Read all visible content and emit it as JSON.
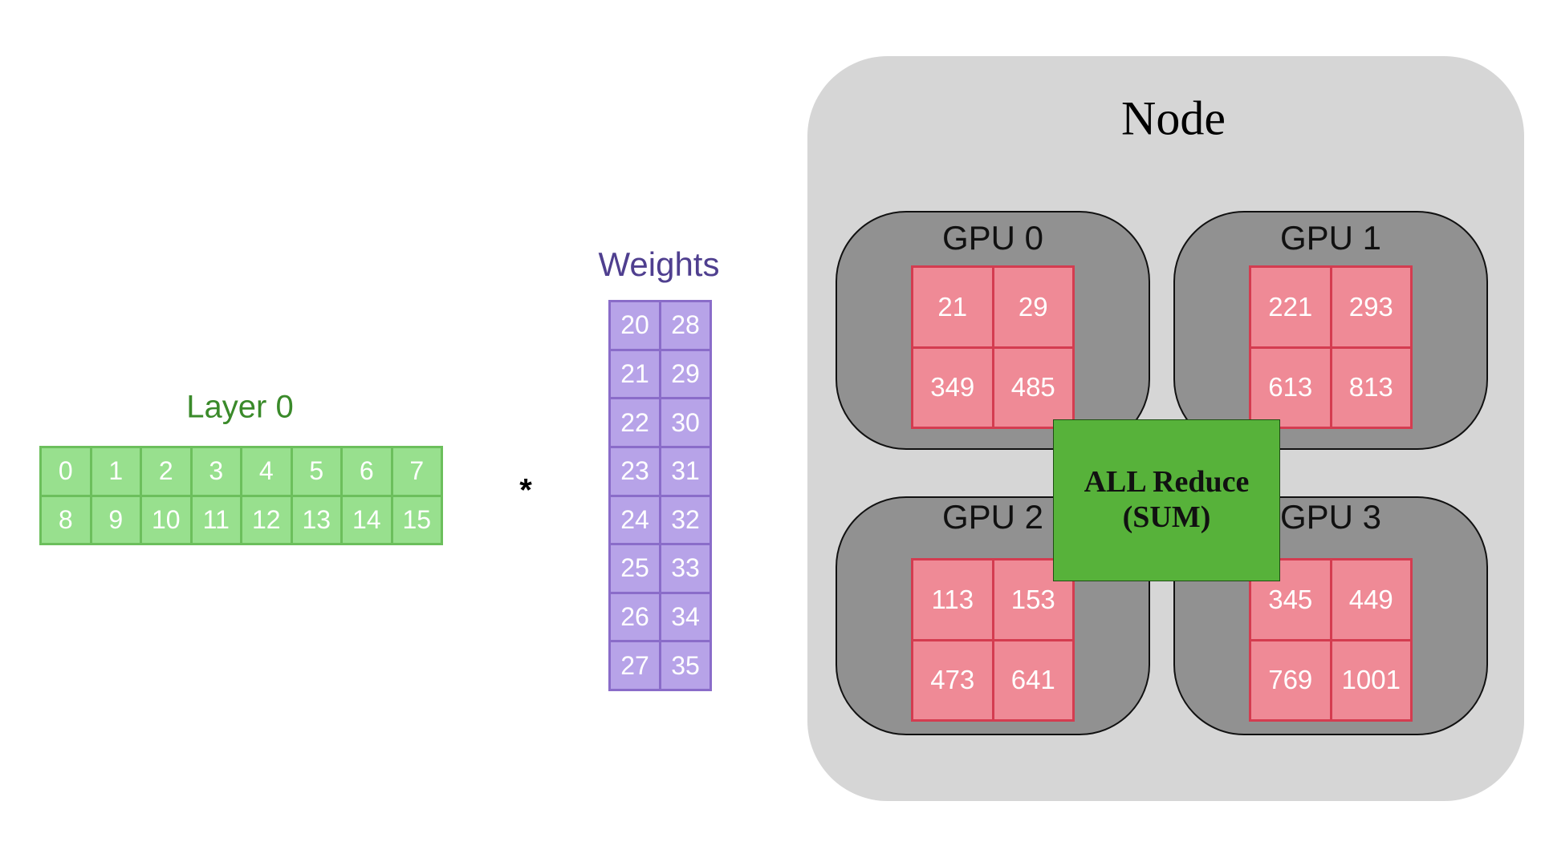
{
  "layer": {
    "title": "Layer 0",
    "rows": [
      [
        "0",
        "1",
        "2",
        "3",
        "4",
        "5",
        "6",
        "7"
      ],
      [
        "8",
        "9",
        "10",
        "11",
        "12",
        "13",
        "14",
        "15"
      ]
    ],
    "color": "#98e08e",
    "title_color": "#3a8a2a"
  },
  "operator": "*",
  "weights": {
    "title": "Weights",
    "rows": [
      [
        "20",
        "28"
      ],
      [
        "21",
        "29"
      ],
      [
        "22",
        "30"
      ],
      [
        "23",
        "31"
      ],
      [
        "24",
        "32"
      ],
      [
        "25",
        "33"
      ],
      [
        "26",
        "34"
      ],
      [
        "27",
        "35"
      ]
    ],
    "color": "#b7a3e8",
    "title_color": "#4f3f8f"
  },
  "node": {
    "title": "Node",
    "gpus": [
      {
        "label": "GPU 0",
        "rows": [
          [
            "21",
            "29"
          ],
          [
            "349",
            "485"
          ]
        ]
      },
      {
        "label": "GPU 1",
        "rows": [
          [
            "221",
            "293"
          ],
          [
            "613",
            "813"
          ]
        ]
      },
      {
        "label": "GPU 2",
        "rows": [
          [
            "113",
            "153"
          ],
          [
            "473",
            "641"
          ]
        ]
      },
      {
        "label": "GPU 3",
        "rows": [
          [
            "345",
            "449"
          ],
          [
            "769",
            "1001"
          ]
        ]
      }
    ],
    "all_reduce": {
      "line1": "ALL Reduce",
      "line2": "(SUM)",
      "color": "#57b23a"
    }
  }
}
